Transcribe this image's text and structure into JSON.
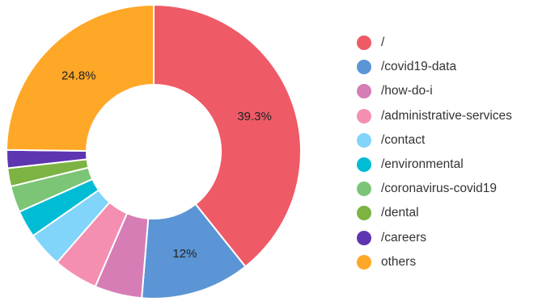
{
  "chart_data": {
    "type": "pie",
    "variant": "donut",
    "title": "",
    "legend_position": "right",
    "slices": [
      {
        "label": "/",
        "value": 39.3,
        "color": "#EF5A67",
        "show_label": true,
        "display_label": "39.3%"
      },
      {
        "label": "/covid19-data",
        "value": 12,
        "color": "#5B95D5",
        "show_label": true,
        "display_label": "12%"
      },
      {
        "label": "/how-do-i",
        "value": 5.2,
        "color": "#D67DB6",
        "show_label": false,
        "display_label": ""
      },
      {
        "label": "/administrative-services",
        "value": 4.9,
        "color": "#F48FB1",
        "show_label": false,
        "display_label": ""
      },
      {
        "label": "/contact",
        "value": 3.9,
        "color": "#81D4FA",
        "show_label": false,
        "display_label": ""
      },
      {
        "label": "/environmental",
        "value": 3.0,
        "color": "#00BCD4",
        "show_label": false,
        "display_label": ""
      },
      {
        "label": "/coronavirus-covid19",
        "value": 2.9,
        "color": "#7CC576",
        "show_label": false,
        "display_label": ""
      },
      {
        "label": "/dental",
        "value": 2.0,
        "color": "#7CB342",
        "show_label": false,
        "display_label": ""
      },
      {
        "label": "/careers",
        "value": 2.0,
        "color": "#5E35B1",
        "show_label": false,
        "display_label": ""
      },
      {
        "label": "others",
        "value": 24.8,
        "color": "#FFA726",
        "show_label": true,
        "display_label": "24.8%"
      }
    ]
  }
}
